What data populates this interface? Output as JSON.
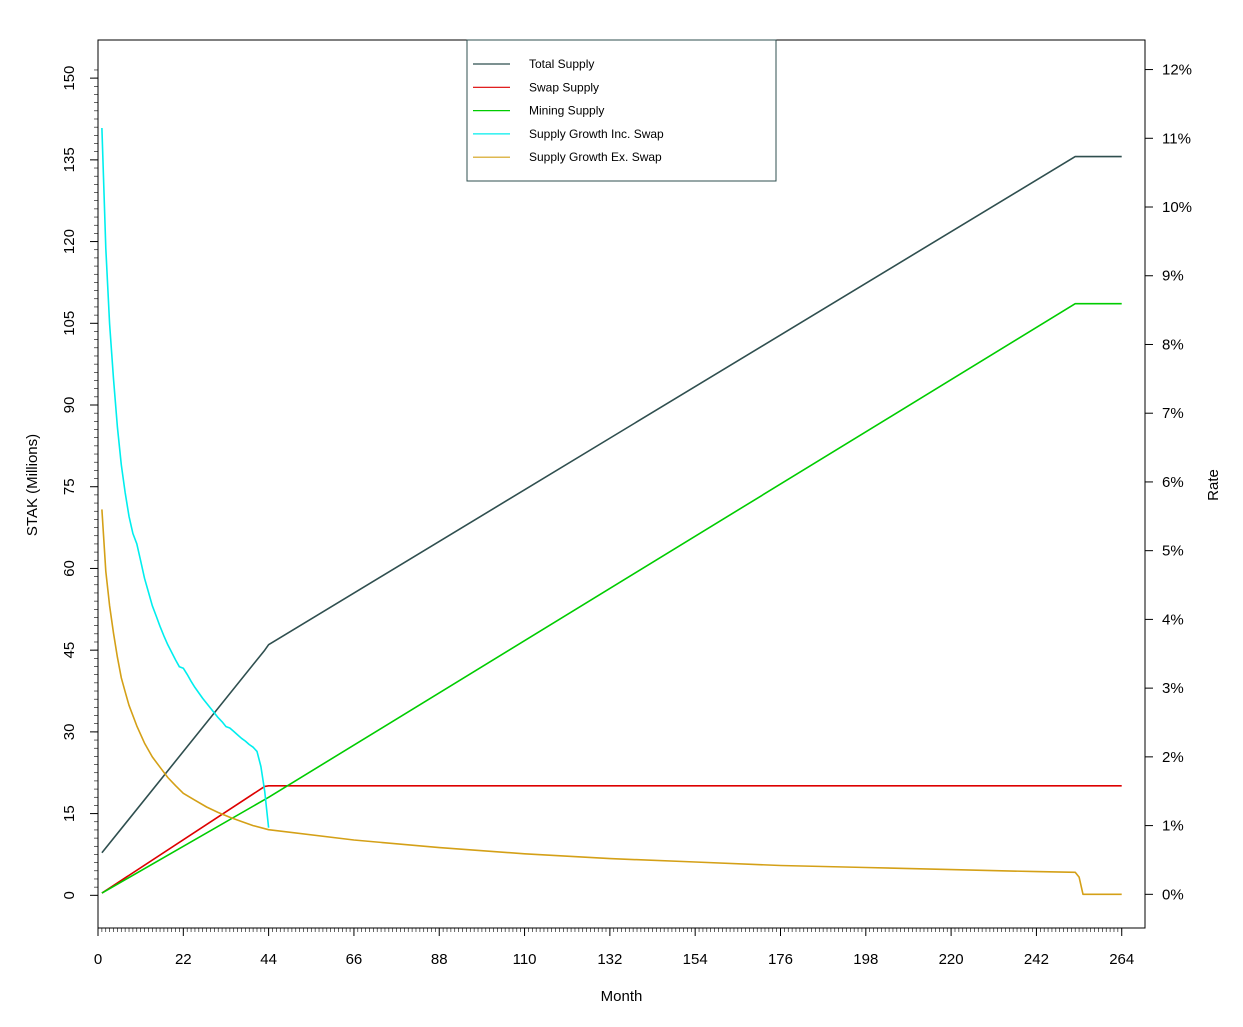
{
  "chart_data": {
    "type": "line",
    "title": "",
    "xlabel": "Month",
    "ylabel": "STAK (Millions)",
    "y2label": "Rate",
    "xlim": [
      0,
      270
    ],
    "ylim": [
      -6,
      157
    ],
    "y2lim": [
      -0.49,
      12.43
    ],
    "x_ticks": [
      "0",
      "22",
      "44",
      "66",
      "88",
      "110",
      "132",
      "154",
      "176",
      "198",
      "220",
      "242",
      "264"
    ],
    "x_tick_values": [
      0,
      22,
      44,
      66,
      88,
      110,
      132,
      154,
      176,
      198,
      220,
      242,
      264
    ],
    "y_ticks": [
      "0",
      "15",
      "30",
      "45",
      "60",
      "75",
      "90",
      "105",
      "120",
      "135",
      "150"
    ],
    "y_tick_values": [
      0,
      15,
      30,
      45,
      60,
      75,
      90,
      105,
      120,
      135,
      150
    ],
    "y2_ticks": [
      "0%",
      "1%",
      "2%",
      "3%",
      "4%",
      "5%",
      "6%",
      "7%",
      "8%",
      "9%",
      "10%",
      "11%",
      "12%"
    ],
    "y2_tick_values": [
      0,
      1,
      2,
      3,
      4,
      5,
      6,
      7,
      8,
      9,
      10,
      11,
      12
    ],
    "grid": false,
    "legend_position": "top-center",
    "series": [
      {
        "name": "Total Supply",
        "color": "#2f4f4f",
        "axis": "left",
        "points": [
          [
            1,
            7.8
          ],
          [
            43,
            45.0
          ],
          [
            44,
            46.0
          ],
          [
            252,
            135.6
          ],
          [
            264,
            135.6
          ]
        ]
      },
      {
        "name": "Swap Supply",
        "color": "#dd0000",
        "axis": "left",
        "points": [
          [
            1,
            0.4
          ],
          [
            43,
            20.0
          ],
          [
            44,
            20.1
          ],
          [
            264,
            20.1
          ]
        ]
      },
      {
        "name": "Mining Supply",
        "color": "#00cc00",
        "axis": "left",
        "points": [
          [
            1,
            0.4
          ],
          [
            44,
            18.0
          ],
          [
            252,
            108.6
          ],
          [
            264,
            108.6
          ]
        ]
      },
      {
        "name": "Supply Growth Inc. Swap",
        "color": "#00eeee",
        "axis": "right",
        "points": [
          [
            1,
            11.15
          ],
          [
            2,
            9.4
          ],
          [
            3,
            8.3
          ],
          [
            4,
            7.5
          ],
          [
            5,
            6.8
          ],
          [
            6,
            6.25
          ],
          [
            7,
            5.85
          ],
          [
            8,
            5.5
          ],
          [
            9,
            5.25
          ],
          [
            10,
            5.1
          ],
          [
            11,
            4.85
          ],
          [
            12,
            4.6
          ],
          [
            13,
            4.4
          ],
          [
            14,
            4.2
          ],
          [
            15,
            4.05
          ],
          [
            16,
            3.9
          ],
          [
            17,
            3.76
          ],
          [
            18,
            3.63
          ],
          [
            19,
            3.52
          ],
          [
            20,
            3.41
          ],
          [
            21,
            3.31
          ],
          [
            22,
            3.29
          ],
          [
            23,
            3.2
          ],
          [
            24,
            3.1
          ],
          [
            25,
            3.01
          ],
          [
            26,
            2.93
          ],
          [
            27,
            2.85
          ],
          [
            28,
            2.78
          ],
          [
            29,
            2.71
          ],
          [
            30,
            2.64
          ],
          [
            31,
            2.57
          ],
          [
            32,
            2.51
          ],
          [
            33,
            2.44
          ],
          [
            34,
            2.42
          ],
          [
            35,
            2.37
          ],
          [
            36,
            2.32
          ],
          [
            37,
            2.27
          ],
          [
            38,
            2.23
          ],
          [
            39,
            2.18
          ],
          [
            40,
            2.14
          ],
          [
            41,
            2.08
          ],
          [
            42,
            1.86
          ],
          [
            43,
            1.5
          ],
          [
            44,
            0.97
          ]
        ]
      },
      {
        "name": "Supply Growth Ex. Swap",
        "color": "#d4a017",
        "axis": "right",
        "points": [
          [
            1,
            5.6
          ],
          [
            2,
            4.7
          ],
          [
            3,
            4.2
          ],
          [
            4,
            3.8
          ],
          [
            5,
            3.45
          ],
          [
            6,
            3.15
          ],
          [
            7,
            2.95
          ],
          [
            8,
            2.75
          ],
          [
            10,
            2.45
          ],
          [
            12,
            2.2
          ],
          [
            14,
            2.0
          ],
          [
            16,
            1.85
          ],
          [
            18,
            1.7
          ],
          [
            20,
            1.58
          ],
          [
            22,
            1.47
          ],
          [
            25,
            1.37
          ],
          [
            28,
            1.27
          ],
          [
            31,
            1.19
          ],
          [
            34,
            1.12
          ],
          [
            37,
            1.06
          ],
          [
            40,
            1.0
          ],
          [
            44,
            0.94
          ],
          [
            66,
            0.79
          ],
          [
            88,
            0.68
          ],
          [
            110,
            0.59
          ],
          [
            132,
            0.52
          ],
          [
            154,
            0.47
          ],
          [
            176,
            0.42
          ],
          [
            198,
            0.39
          ],
          [
            220,
            0.36
          ],
          [
            242,
            0.33
          ],
          [
            252,
            0.32
          ],
          [
            253,
            0.25
          ],
          [
            254,
            0.0
          ],
          [
            264,
            0.0
          ]
        ]
      }
    ]
  },
  "colors": {
    "frame": "#000000",
    "legend_border": "#2f4f4f"
  }
}
